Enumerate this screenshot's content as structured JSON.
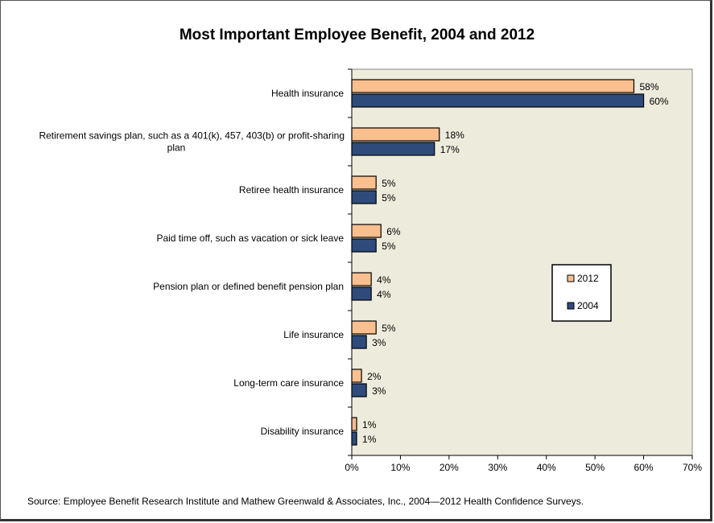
{
  "chart_data": {
    "type": "bar",
    "orientation": "horizontal",
    "title": "Most Important Employee Benefit, 2004 and 2012",
    "categories": [
      "Health insurance",
      "Retirement savings plan, such as a 401(k), 457, 403(b) or profit-sharing plan",
      "Retiree health insurance",
      "Paid time off, such as vacation or sick leave",
      "Pension plan or defined benefit pension plan",
      "Life insurance",
      "Long-term care insurance",
      "Disability insurance"
    ],
    "category_lines": [
      [
        "Health insurance"
      ],
      [
        "Retirement savings plan, such as a 401(k), 457, 403(b) or profit-sharing",
        "plan"
      ],
      [
        "Retiree health insurance"
      ],
      [
        "Paid time off, such as vacation or sick leave"
      ],
      [
        "Pension plan or defined benefit pension plan"
      ],
      [
        "Life insurance"
      ],
      [
        "Long-term care insurance"
      ],
      [
        "Disability insurance"
      ]
    ],
    "series": [
      {
        "name": "2012",
        "color": "#f9bf8e",
        "values": [
          58,
          18,
          5,
          6,
          4,
          5,
          2,
          1
        ]
      },
      {
        "name": "2004",
        "color": "#2f4b7c",
        "values": [
          60,
          17,
          5,
          5,
          4,
          3,
          3,
          1
        ]
      }
    ],
    "value_suffix": "%",
    "xlim": [
      0,
      70
    ],
    "xticks": [
      "0%",
      "10%",
      "20%",
      "30%",
      "40%",
      "50%",
      "60%",
      "70%"
    ],
    "plot_background": "#ecebdc",
    "grid": false,
    "legend_position": "right"
  },
  "source": "Source: Employee Benefit Research Institute and Mathew Greenwald & Associates, Inc., 2004—2012 Health Confidence Surveys."
}
